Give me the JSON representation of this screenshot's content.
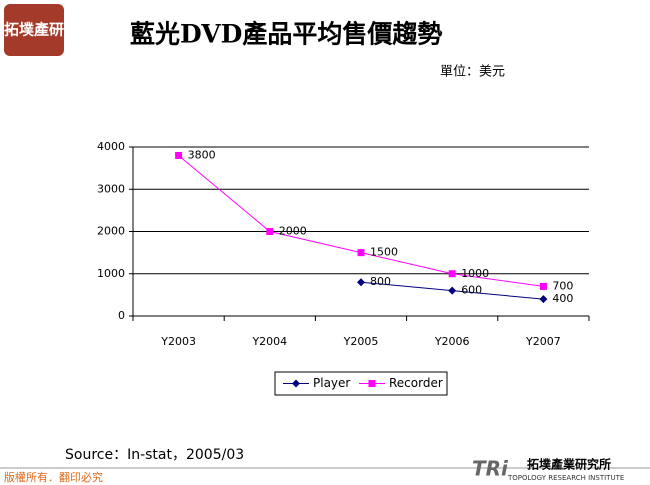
{
  "chart_data": {
    "type": "line",
    "title": "藍光DVD產品平均售價趨勢",
    "unit_label": "單位：美元",
    "source": "Source：In-stat，2005/03",
    "categories": [
      "Y2003",
      "Y2004",
      "Y2005",
      "Y2006",
      "Y2007"
    ],
    "series": [
      {
        "name": "Player",
        "color": "#000080",
        "marker": "diamond",
        "values": [
          null,
          null,
          800,
          600,
          400
        ]
      },
      {
        "name": "Recorder",
        "color": "#ff00ff",
        "marker": "square",
        "values": [
          3800,
          2000,
          1500,
          1000,
          700
        ]
      }
    ],
    "ylim": [
      0,
      4000
    ],
    "yticks": [
      0,
      1000,
      2000,
      3000,
      4000
    ],
    "grid": true,
    "legend": "bottom",
    "data_labels": true
  },
  "branding": {
    "logo": "拓墣產研",
    "footer": "版權所有．翻印必究",
    "institute_mark": "TRi",
    "institute_name": "拓墣產業研究所",
    "institute_english": "TOPOLOGY RESEARCH INSTITUTE"
  }
}
